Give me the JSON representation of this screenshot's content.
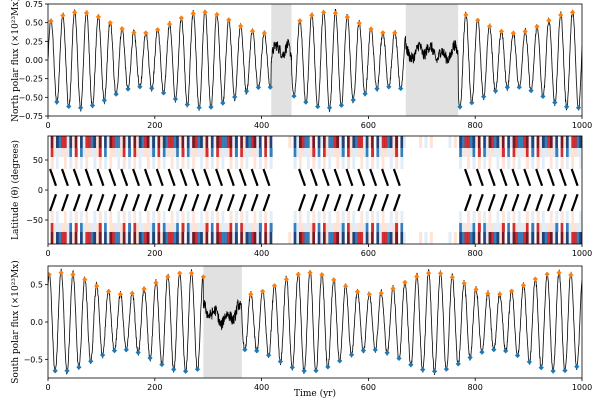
{
  "chart_data": [
    {
      "type": "line",
      "panel": "north",
      "ylabel": "North polar flux (×10²³Mx)",
      "xlim": [
        0,
        1000
      ],
      "ylim": [
        -0.75,
        0.75
      ],
      "xticks": [
        "0",
        "200",
        "400",
        "600",
        "800",
        "1000"
      ],
      "yticks": [
        "0.75",
        "0.50",
        "0.25",
        "0.00",
        "−0.25",
        "−0.50",
        "−0.75"
      ],
      "shaded_intervals": [
        [
          418,
          456
        ],
        [
          670,
          768
        ]
      ],
      "series": [
        {
          "cycle_period_yr": 22.2,
          "max_amplitude": 0.66,
          "weak_intervals": [
            [
              418,
              456
            ],
            [
              670,
              768
            ]
          ],
          "peak_markers_color": "#ff7f0e",
          "trough_markers_color": "#1f77b4"
        }
      ]
    },
    {
      "type": "heatmap",
      "panel": "butterfly",
      "ylabel": "Latitude (θ) (degrees)",
      "xlim": [
        0,
        1000
      ],
      "ylim": [
        -90,
        90
      ],
      "xticks": [
        "0",
        "200",
        "400",
        "600",
        "800",
        "1000"
      ],
      "yticks": [
        "50",
        "0",
        "−50"
      ],
      "colormap": [
        "#08306b",
        "#2171b5",
        "#deebf7",
        "#ffffff",
        "#fee0d2",
        "#cb181d",
        "#67000d"
      ],
      "weak_intervals": [
        [
          418,
          456
        ],
        [
          670,
          768
        ]
      ]
    },
    {
      "type": "line",
      "panel": "south",
      "ylabel": "South polar flux (×10²³Mx)",
      "xlabel": "Time (yr)",
      "xlim": [
        0,
        1000
      ],
      "ylim": [
        -0.75,
        0.75
      ],
      "xticks": [
        "0",
        "200",
        "400",
        "600",
        "800",
        "1000"
      ],
      "yticks": [
        "0.5",
        "0.0",
        "−0.5"
      ],
      "shaded_intervals": [
        [
          291,
          363
        ]
      ],
      "series": [
        {
          "cycle_period_yr": 22.2,
          "max_amplitude": 0.68,
          "weak_intervals": [
            [
              291,
              363
            ]
          ],
          "peak_markers_color": "#ff7f0e",
          "trough_markers_color": "#1f77b4"
        }
      ]
    }
  ]
}
